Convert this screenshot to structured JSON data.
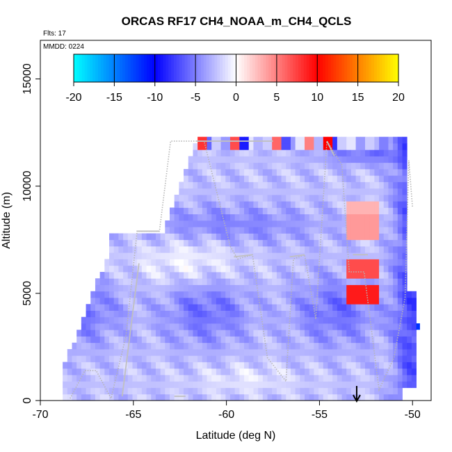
{
  "chart_data": {
    "type": "heatmap",
    "title": "ORCAS RF17 CH4_NOAA_m_CH4_QCLS",
    "flights_label": "Flts: 17",
    "date_label": "MMDD: 0224",
    "xlabel": "Latitude (deg N)",
    "ylabel": "Altitude (m)",
    "xlim": [
      -70,
      -49
    ],
    "ylim": [
      0,
      16800
    ],
    "xticks": [
      -70,
      -65,
      -60,
      -55,
      -50
    ],
    "yticks": [
      0,
      5000,
      10000,
      15000
    ],
    "colorbar": {
      "ticks": [
        -20,
        -15,
        -10,
        -5,
        0,
        5,
        10,
        15,
        20
      ],
      "range": [
        -20,
        20
      ],
      "colors": [
        "#00ffff",
        "#0000ff",
        "#ffffff",
        "#ff0000",
        "#ffff00"
      ]
    },
    "arrow_marker_x": -53,
    "grid": false
  }
}
